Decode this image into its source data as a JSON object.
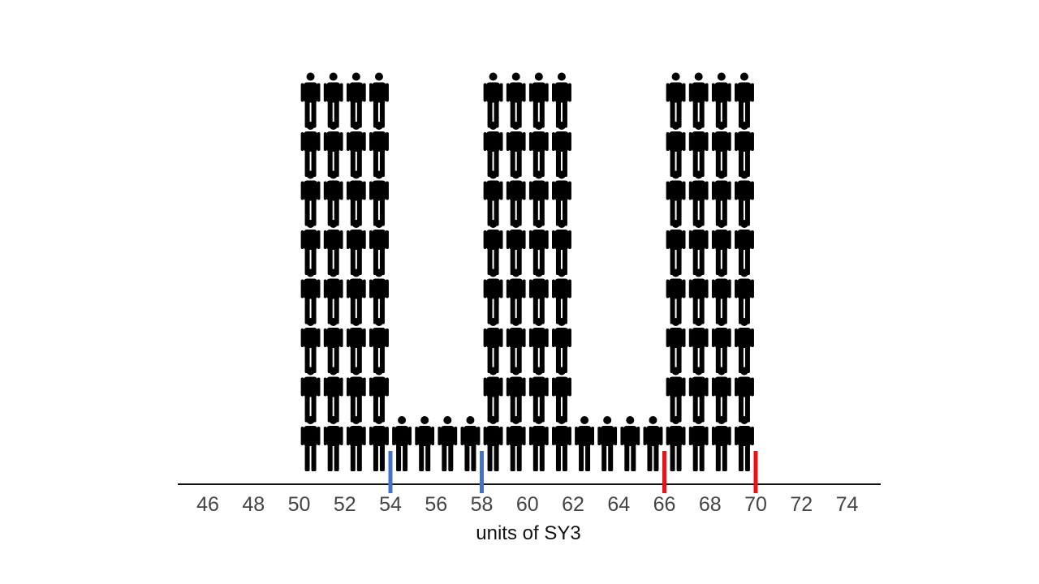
{
  "chart_data": {
    "type": "pictograph",
    "xlabel": "units of SY3",
    "xlim": [
      45,
      75.3
    ],
    "ticks": [
      46,
      48,
      50,
      52,
      54,
      56,
      58,
      60,
      62,
      64,
      66,
      68,
      70,
      72,
      74
    ],
    "tick_labels": [
      "46",
      "48",
      "50",
      "52",
      "54",
      "56",
      "58",
      "60",
      "62",
      "64",
      "66",
      "68",
      "70",
      "72",
      "74"
    ],
    "icon": "person-icon",
    "icon_color": "#000000",
    "bins": [
      {
        "x": 50.5,
        "count": 8
      },
      {
        "x": 51.5,
        "count": 8
      },
      {
        "x": 52.5,
        "count": 8
      },
      {
        "x": 53.5,
        "count": 8
      },
      {
        "x": 54.5,
        "count": 1
      },
      {
        "x": 55.5,
        "count": 1
      },
      {
        "x": 56.5,
        "count": 1
      },
      {
        "x": 57.5,
        "count": 1
      },
      {
        "x": 58.5,
        "count": 8
      },
      {
        "x": 59.5,
        "count": 8
      },
      {
        "x": 60.5,
        "count": 8
      },
      {
        "x": 61.5,
        "count": 8
      },
      {
        "x": 62.5,
        "count": 1
      },
      {
        "x": 63.5,
        "count": 1
      },
      {
        "x": 64.5,
        "count": 1
      },
      {
        "x": 65.5,
        "count": 1
      },
      {
        "x": 66.5,
        "count": 8
      },
      {
        "x": 67.5,
        "count": 8
      },
      {
        "x": 68.5,
        "count": 8
      },
      {
        "x": 69.5,
        "count": 8
      }
    ],
    "markers": [
      {
        "x": 54,
        "color": "#4472c4"
      },
      {
        "x": 58,
        "color": "#4472c4"
      },
      {
        "x": 66,
        "color": "#ee1111"
      },
      {
        "x": 70,
        "color": "#ee1111"
      }
    ],
    "grid": false
  }
}
